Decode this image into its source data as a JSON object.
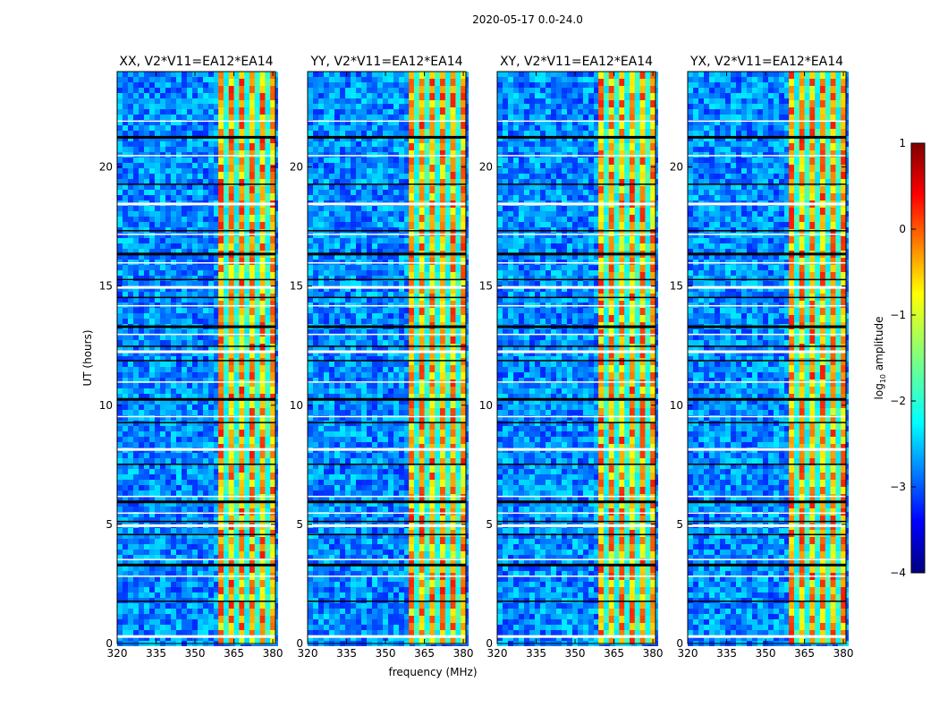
{
  "suptitle": "2020-05-17 0.0-24.0",
  "chart_data": {
    "type": "heatmap",
    "xlabel": "frequency (MHz)",
    "ylabel": "UT (hours)",
    "xlim": [
      320,
      381
    ],
    "ylim": [
      0,
      24
    ],
    "xticks": [
      "320",
      "335",
      "350",
      "365",
      "380"
    ],
    "yticks": [
      "0",
      "5",
      "10",
      "15",
      "20"
    ],
    "panels": [
      {
        "title": "XX, V2*V11=EA12*EA14",
        "strong_band_mhz": [
          359,
          381
        ]
      },
      {
        "title": "YY, V2*V11=EA12*EA14",
        "strong_band_mhz": [
          359,
          381
        ]
      },
      {
        "title": "XY, V2*V11=EA12*EA14",
        "strong_band_mhz": [
          359,
          381
        ]
      },
      {
        "title": "YX, V2*V11=EA12*EA14",
        "strong_band_mhz": [
          359,
          381
        ]
      }
    ],
    "flagged_rows_ut": [
      0.35,
      1.8,
      2.85,
      3.35,
      3.55,
      4.6,
      5.0,
      5.15,
      5.5,
      6.0,
      6.2,
      7.55,
      8.2,
      9.3,
      9.55,
      10.3,
      11.0,
      11.9,
      12.3,
      12.5,
      13.0,
      13.35,
      14.2,
      14.55,
      15.0,
      15.3,
      16.0,
      16.4,
      17.2,
      17.35,
      18.5,
      19.3,
      20.5,
      21.3,
      21.95
    ],
    "colorbar": {
      "label": "log10 amplitude",
      "label_text": "log",
      "label_sub": "10",
      "label_rest": " amplitude",
      "range": [
        -4,
        1
      ],
      "ticks": [
        "1",
        "0",
        "−1",
        "−2",
        "−3",
        "−4"
      ],
      "colormap": "jet",
      "colors": [
        "#00007f",
        "#0000ff",
        "#007fff",
        "#00ffff",
        "#7fff7f",
        "#ffff00",
        "#ff7f00",
        "#ff0000",
        "#7f0000"
      ]
    }
  }
}
